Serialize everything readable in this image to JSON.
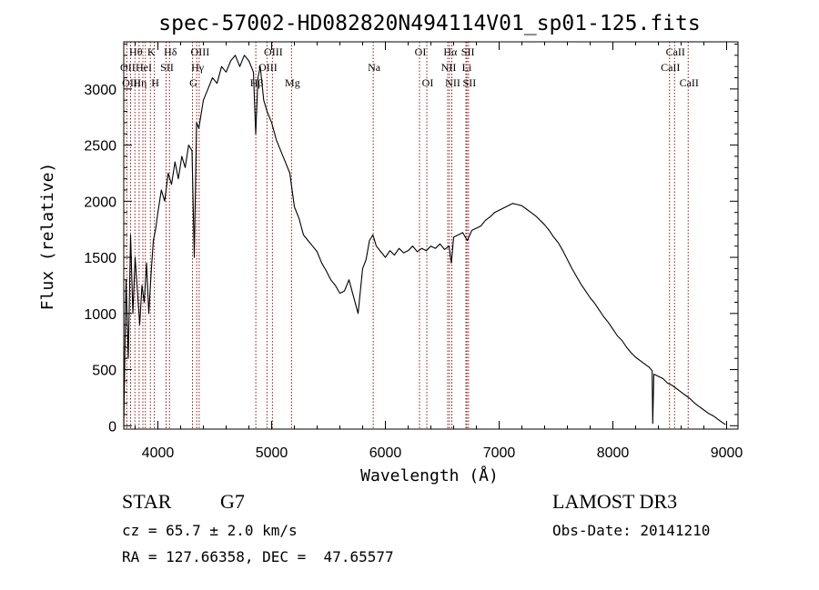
{
  "chart_data": {
    "type": "line",
    "title": "spec-57002-HD082820N494114V01_sp01-125.fits",
    "xlabel": "Wavelength (Å)",
    "ylabel": "Flux (relative)",
    "xlim": [
      3700,
      9100
    ],
    "ylim": [
      -30,
      3420
    ],
    "xticks": [
      4000,
      5000,
      6000,
      7000,
      8000,
      9000
    ],
    "yticks": [
      0,
      500,
      1000,
      1500,
      2000,
      2500,
      3000
    ],
    "grid": false,
    "line_color": "#000000",
    "marker_color": "#8b1a1a",
    "series": [
      {
        "values_description": "",
        "x": [
          3700,
          3720,
          3740,
          3760,
          3780,
          3800,
          3820,
          3840,
          3860,
          3880,
          3900,
          3920,
          3940,
          3960,
          3980,
          4000,
          4030,
          4060,
          4090,
          4120,
          4150,
          4180,
          4210,
          4240,
          4270,
          4300,
          4320,
          4340,
          4360,
          4400,
          4440,
          4480,
          4520,
          4560,
          4600,
          4640,
          4680,
          4720,
          4760,
          4800,
          4840,
          4860,
          4880,
          4900,
          4930,
          4960,
          5000,
          5040,
          5080,
          5120,
          5160,
          5200,
          5240,
          5280,
          5320,
          5360,
          5400,
          5440,
          5480,
          5520,
          5560,
          5600,
          5640,
          5680,
          5720,
          5760,
          5780,
          5800,
          5830,
          5860,
          5890,
          5920,
          5960,
          6000,
          6040,
          6080,
          6120,
          6160,
          6200,
          6240,
          6280,
          6320,
          6360,
          6400,
          6440,
          6480,
          6520,
          6560,
          6580,
          6600,
          6640,
          6680,
          6720,
          6760,
          6800,
          6840,
          6880,
          6920,
          6960,
          7000,
          7040,
          7080,
          7120,
          7160,
          7200,
          7240,
          7280,
          7320,
          7360,
          7400,
          7440,
          7480,
          7520,
          7560,
          7600,
          7640,
          7680,
          7720,
          7760,
          7800,
          7840,
          7880,
          7920,
          7960,
          8000,
          8040,
          8080,
          8120,
          8160,
          8200,
          8240,
          8280,
          8320,
          8345,
          8350,
          8360,
          8400,
          8440,
          8480,
          8520,
          8560,
          8600,
          8640,
          8680,
          8720,
          8760,
          8800,
          8840,
          8880,
          8920,
          8960,
          8990
        ],
        "y": [
          0,
          1300,
          600,
          1700,
          1000,
          1500,
          1200,
          900,
          1250,
          1100,
          1450,
          1000,
          1350,
          1650,
          1750,
          1900,
          2100,
          2000,
          2250,
          2150,
          2350,
          2200,
          2400,
          2300,
          2500,
          2450,
          1500,
          2700,
          2650,
          2900,
          3000,
          3100,
          3050,
          3200,
          3150,
          3250,
          3300,
          3200,
          3300,
          3250,
          3150,
          2600,
          3100,
          3200,
          2900,
          2800,
          2700,
          2550,
          2450,
          2350,
          2250,
          1950,
          1850,
          1700,
          1650,
          1600,
          1550,
          1450,
          1380,
          1300,
          1250,
          1180,
          1200,
          1300,
          1150,
          1000,
          1200,
          1400,
          1480,
          1650,
          1700,
          1600,
          1550,
          1500,
          1560,
          1520,
          1580,
          1540,
          1560,
          1600,
          1550,
          1580,
          1560,
          1600,
          1580,
          1620,
          1570,
          1600,
          1450,
          1680,
          1700,
          1720,
          1650,
          1740,
          1760,
          1780,
          1830,
          1860,
          1900,
          1920,
          1940,
          1960,
          1980,
          1970,
          1960,
          1930,
          1900,
          1870,
          1830,
          1790,
          1740,
          1680,
          1630,
          1560,
          1480,
          1400,
          1330,
          1260,
          1200,
          1140,
          1090,
          1030,
          970,
          920,
          860,
          800,
          760,
          700,
          650,
          610,
          580,
          550,
          520,
          490,
          20,
          460,
          440,
          420,
          380,
          360,
          330,
          300,
          270,
          240,
          200,
          170,
          140,
          110,
          90,
          60,
          30,
          10
        ]
      }
    ],
    "line_markers": [
      {
        "x": 3727,
        "label": "OII",
        "row": 1
      },
      {
        "x": 3760,
        "label": "OIII",
        "row": 2
      },
      {
        "x": 3798,
        "label": "Hθ",
        "row": 0
      },
      {
        "x": 3835,
        "label": "Hη",
        "row": 2
      },
      {
        "x": 3868,
        "label": "HeI",
        "row": 1
      },
      {
        "x": 3890,
        "label": "",
        "row": 0
      },
      {
        "x": 3934,
        "label": "K",
        "row": 0
      },
      {
        "x": 3969,
        "label": "H",
        "row": 2
      },
      {
        "x": 4072,
        "label": "SII",
        "row": 1
      },
      {
        "x": 4102,
        "label": "Hδ",
        "row": 0
      },
      {
        "x": 4304,
        "label": "G",
        "row": 2
      },
      {
        "x": 4341,
        "label": "Hγ",
        "row": 1
      },
      {
        "x": 4363,
        "label": "OIII",
        "row": 0
      },
      {
        "x": 4861,
        "label": "Hβ",
        "row": 2
      },
      {
        "x": 4959,
        "label": "OIII",
        "row": 1
      },
      {
        "x": 5007,
        "label": "OIII",
        "row": 0
      },
      {
        "x": 5175,
        "label": "Mg",
        "row": 2
      },
      {
        "x": 5893,
        "label": "Na",
        "row": 1
      },
      {
        "x": 6300,
        "label": "OI",
        "row": 0
      },
      {
        "x": 6364,
        "label": "OI",
        "row": 2
      },
      {
        "x": 6548,
        "label": "NII",
        "row": 1
      },
      {
        "x": 6563,
        "label": "Hα",
        "row": 0
      },
      {
        "x": 6584,
        "label": "NII",
        "row": 2
      },
      {
        "x": 6708,
        "label": "Li",
        "row": 1
      },
      {
        "x": 6717,
        "label": "SII",
        "row": 0
      },
      {
        "x": 6731,
        "label": "SII",
        "row": 2
      },
      {
        "x": 8498,
        "label": "CaII",
        "row": 1
      },
      {
        "x": 8542,
        "label": "CaII",
        "row": 0
      },
      {
        "x": 8662,
        "label": "CaII",
        "row": 2
      }
    ]
  },
  "info": {
    "object_type": "STAR",
    "subclass": "G7",
    "survey": "LAMOST DR3",
    "redshift": "cz = 65.7 ± 2.0 km/s",
    "obs_date": "Obs-Date: 20141210",
    "coords": "RA = 127.66358, DEC =  47.65577"
  }
}
